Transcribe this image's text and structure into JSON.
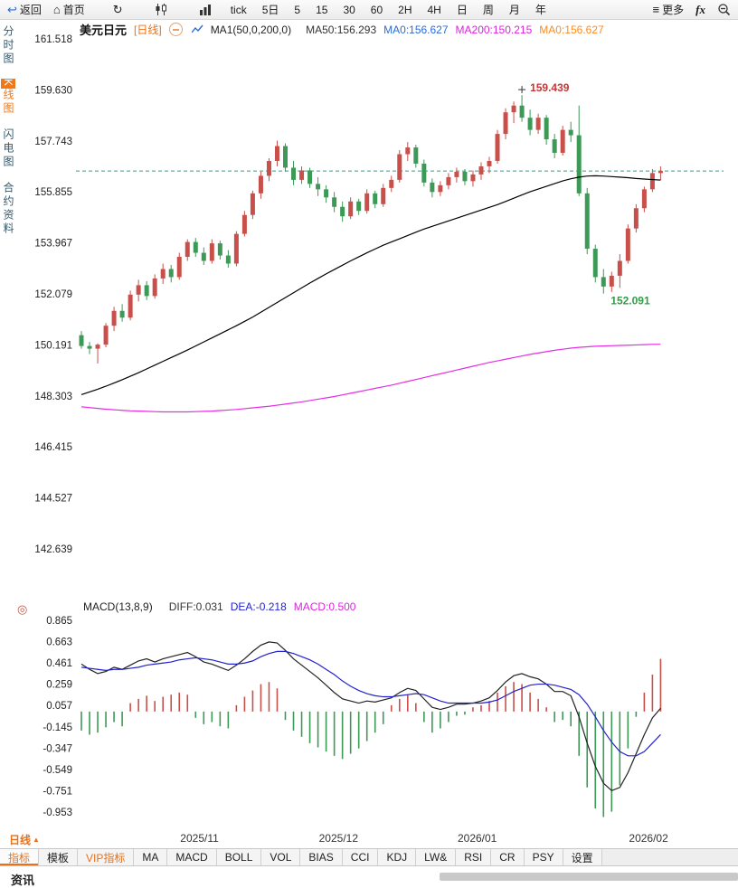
{
  "icons": {
    "back": "↩",
    "home": "⌂",
    "refresh": "↻",
    "more": "≡",
    "indicator_settings": "◎",
    "period_up": "▲"
  },
  "toolbar": {
    "back_label": "返回",
    "home_label": "首页",
    "periods": [
      "tick",
      "5日",
      "5",
      "15",
      "30",
      "60",
      "2H",
      "4H",
      "日",
      "周",
      "月",
      "年"
    ],
    "more_label": "更多",
    "fx_label": "fx"
  },
  "sidebar": {
    "items": [
      {
        "key": "time-share",
        "label": "分时图",
        "active": false
      },
      {
        "key": "kline",
        "label": "K线图",
        "active": true
      },
      {
        "key": "lightning",
        "label": "闪电图",
        "active": false
      },
      {
        "key": "contract-info",
        "label": "合约资料",
        "active": false
      }
    ]
  },
  "chart_header": {
    "symbol": "美元日元",
    "period_tag": "[日线]",
    "ma_title": "MA1(50,0,200,0)",
    "ma_values": [
      {
        "label": "MA50:156.293",
        "color": "#333333"
      },
      {
        "label": "MA0:156.627",
        "color": "#2b6bd7"
      },
      {
        "label": "MA200:150.215",
        "color": "#dd22dd"
      },
      {
        "label": "MA0:156.627",
        "color": "#ff8a1e"
      }
    ]
  },
  "macd_header": {
    "title": "MACD(13,8,9)",
    "values": [
      {
        "label": "DIFF:0.031",
        "color": "#333333"
      },
      {
        "label": "DEA:-0.218",
        "color": "#2222cc"
      },
      {
        "label": "MACD:0.500",
        "color": "#dd22dd"
      }
    ]
  },
  "footer": {
    "period_selector": "日线",
    "news_label": "资讯",
    "tabs": [
      {
        "key": "indicators",
        "label": "指标",
        "style": "active"
      },
      {
        "key": "templates",
        "label": "模板",
        "style": ""
      },
      {
        "key": "vip-indicators",
        "label": "VIP指标",
        "style": "vip"
      },
      {
        "key": "ma",
        "label": "MA",
        "style": ""
      },
      {
        "key": "macd",
        "label": "MACD",
        "style": ""
      },
      {
        "key": "boll",
        "label": "BOLL",
        "style": ""
      },
      {
        "key": "vol",
        "label": "VOL",
        "style": ""
      },
      {
        "key": "bias",
        "label": "BIAS",
        "style": ""
      },
      {
        "key": "cci",
        "label": "CCI",
        "style": ""
      },
      {
        "key": "kdj",
        "label": "KDJ",
        "style": ""
      },
      {
        "key": "lw",
        "label": "LW&",
        "style": ""
      },
      {
        "key": "rsi",
        "label": "RSI",
        "style": ""
      },
      {
        "key": "cr",
        "label": "CR",
        "style": ""
      },
      {
        "key": "psy",
        "label": "PSY",
        "style": ""
      },
      {
        "key": "settings",
        "label": "设置",
        "style": ""
      }
    ]
  },
  "chart_data": {
    "type": "candlestick+macd",
    "title": "美元日元 日线",
    "x_labels": [
      {
        "text": "2025/11",
        "index": 15
      },
      {
        "text": "2025/12",
        "index": 32
      },
      {
        "text": "2026/01",
        "index": 49
      },
      {
        "text": "2026/02",
        "index": 70
      }
    ],
    "main": {
      "ylim": [
        142.639,
        161.518
      ],
      "axis_labels": [
        "161.518",
        "159.630",
        "157.743",
        "155.855",
        "153.967",
        "152.079",
        "150.191",
        "148.303",
        "146.415",
        "144.527",
        "142.639"
      ],
      "last_price_line": 156.627,
      "high_annotation": {
        "text": "159.439",
        "index": 54,
        "price": 159.439,
        "color": "#cc3333"
      },
      "low_annotation": {
        "text": "152.091",
        "index": 64,
        "price": 152.091,
        "color": "#2f9e44"
      },
      "colors": {
        "up": "#c9504a",
        "down": "#3c9a56",
        "ma50": "#000000",
        "ma200": "#e52ee5",
        "last_price": "#2aa08c"
      },
      "candles": [
        [
          150.55,
          150.7,
          150.05,
          150.15
        ],
        [
          150.15,
          150.3,
          149.85,
          150.05
        ],
        [
          150.05,
          150.25,
          149.5,
          150.2
        ],
        [
          150.2,
          151.0,
          150.1,
          150.9
        ],
        [
          150.9,
          151.6,
          150.7,
          151.45
        ],
        [
          151.45,
          151.7,
          151.05,
          151.2
        ],
        [
          151.2,
          152.2,
          151.1,
          152.05
        ],
        [
          152.05,
          152.6,
          151.8,
          152.4
        ],
        [
          152.4,
          152.55,
          151.85,
          152.0
        ],
        [
          152.0,
          152.8,
          151.9,
          152.65
        ],
        [
          152.65,
          153.2,
          152.45,
          153.0
        ],
        [
          153.0,
          153.15,
          152.5,
          152.7
        ],
        [
          152.7,
          153.6,
          152.6,
          153.45
        ],
        [
          153.45,
          154.1,
          153.3,
          154.0
        ],
        [
          154.0,
          154.15,
          153.45,
          153.6
        ],
        [
          153.6,
          153.8,
          153.15,
          153.3
        ],
        [
          153.3,
          154.1,
          153.2,
          153.95
        ],
        [
          153.95,
          154.05,
          153.35,
          153.5
        ],
        [
          153.5,
          153.7,
          153.05,
          153.2
        ],
        [
          153.2,
          154.4,
          153.1,
          154.3
        ],
        [
          154.3,
          155.15,
          154.2,
          155.0
        ],
        [
          155.0,
          155.9,
          154.85,
          155.8
        ],
        [
          155.8,
          156.6,
          155.6,
          156.45
        ],
        [
          156.45,
          157.1,
          156.25,
          157.0
        ],
        [
          157.0,
          157.75,
          156.8,
          157.55
        ],
        [
          157.55,
          157.65,
          156.6,
          156.75
        ],
        [
          156.75,
          157.0,
          156.1,
          156.3
        ],
        [
          156.3,
          156.8,
          156.15,
          156.65
        ],
        [
          156.65,
          156.75,
          156.0,
          156.15
        ],
        [
          156.15,
          156.4,
          155.7,
          155.95
        ],
        [
          155.95,
          156.1,
          155.45,
          155.65
        ],
        [
          155.65,
          155.85,
          155.1,
          155.3
        ],
        [
          155.3,
          155.5,
          154.75,
          154.95
        ],
        [
          154.95,
          155.65,
          154.85,
          155.5
        ],
        [
          155.5,
          155.6,
          155.0,
          155.15
        ],
        [
          155.15,
          155.95,
          155.05,
          155.8
        ],
        [
          155.8,
          155.9,
          155.25,
          155.4
        ],
        [
          155.4,
          156.15,
          155.3,
          156.0
        ],
        [
          156.0,
          156.45,
          155.85,
          156.3
        ],
        [
          156.3,
          157.4,
          156.2,
          157.25
        ],
        [
          157.25,
          157.7,
          157.0,
          157.5
        ],
        [
          157.5,
          157.6,
          156.75,
          156.9
        ],
        [
          156.9,
          157.05,
          156.05,
          156.2
        ],
        [
          156.2,
          156.35,
          155.65,
          155.85
        ],
        [
          155.85,
          156.25,
          155.7,
          156.1
        ],
        [
          156.1,
          156.55,
          155.95,
          156.4
        ],
        [
          156.4,
          156.75,
          156.2,
          156.6
        ],
        [
          156.6,
          156.7,
          156.1,
          156.25
        ],
        [
          156.25,
          156.65,
          156.05,
          156.5
        ],
        [
          156.5,
          156.95,
          156.3,
          156.8
        ],
        [
          156.8,
          157.15,
          156.55,
          157.0
        ],
        [
          157.0,
          158.15,
          156.9,
          158.0
        ],
        [
          158.0,
          158.95,
          157.8,
          158.8
        ],
        [
          158.8,
          159.2,
          158.4,
          159.05
        ],
        [
          159.05,
          159.439,
          158.45,
          158.6
        ],
        [
          158.6,
          158.9,
          157.95,
          158.15
        ],
        [
          158.15,
          158.75,
          158.0,
          158.6
        ],
        [
          158.6,
          158.7,
          157.6,
          157.8
        ],
        [
          157.8,
          158.0,
          157.1,
          157.3
        ],
        [
          157.3,
          158.3,
          157.2,
          158.15
        ],
        [
          158.15,
          158.45,
          157.7,
          157.95
        ],
        [
          157.95,
          159.05,
          155.7,
          155.8
        ],
        [
          155.8,
          156.0,
          153.55,
          153.75
        ],
        [
          153.75,
          153.9,
          152.5,
          152.7
        ],
        [
          152.7,
          153.0,
          152.091,
          152.35
        ],
        [
          152.35,
          152.9,
          152.15,
          152.75
        ],
        [
          152.75,
          153.55,
          152.3,
          153.3
        ],
        [
          153.3,
          154.65,
          153.2,
          154.5
        ],
        [
          154.5,
          155.4,
          154.35,
          155.25
        ],
        [
          155.25,
          156.05,
          155.1,
          155.95
        ],
        [
          155.95,
          156.7,
          155.85,
          156.55
        ],
        [
          156.55,
          156.8,
          156.3,
          156.63
        ]
      ],
      "ma50": [
        148.35,
        148.45,
        148.55,
        148.66,
        148.78,
        148.9,
        149.03,
        149.16,
        149.3,
        149.44,
        149.58,
        149.72,
        149.86,
        150.0,
        150.15,
        150.3,
        150.45,
        150.6,
        150.75,
        150.9,
        151.06,
        151.22,
        151.4,
        151.58,
        151.76,
        151.94,
        152.12,
        152.3,
        152.48,
        152.65,
        152.82,
        152.98,
        153.14,
        153.3,
        153.45,
        153.6,
        153.74,
        153.88,
        154.0,
        154.12,
        154.24,
        154.36,
        154.48,
        154.58,
        154.68,
        154.78,
        154.88,
        154.98,
        155.08,
        155.18,
        155.28,
        155.38,
        155.5,
        155.62,
        155.74,
        155.86,
        155.96,
        156.06,
        156.16,
        156.26,
        156.34,
        156.4,
        156.44,
        156.45,
        156.44,
        156.42,
        156.4,
        156.38,
        156.35,
        156.33,
        156.31,
        156.293
      ],
      "ma200": [
        147.9,
        147.87,
        147.84,
        147.81,
        147.79,
        147.77,
        147.75,
        147.74,
        147.73,
        147.72,
        147.71,
        147.71,
        147.71,
        147.71,
        147.72,
        147.73,
        147.74,
        147.76,
        147.78,
        147.8,
        147.83,
        147.86,
        147.89,
        147.92,
        147.96,
        148.0,
        148.04,
        148.08,
        148.13,
        148.18,
        148.23,
        148.28,
        148.34,
        148.4,
        148.46,
        148.52,
        148.58,
        148.64,
        148.7,
        148.77,
        148.84,
        148.91,
        148.98,
        149.05,
        149.12,
        149.19,
        149.26,
        149.33,
        149.4,
        149.47,
        149.54,
        149.6,
        149.66,
        149.72,
        149.78,
        149.84,
        149.89,
        149.94,
        149.99,
        150.03,
        150.07,
        150.1,
        150.12,
        150.14,
        150.15,
        150.16,
        150.17,
        150.18,
        150.19,
        150.2,
        150.21,
        150.215
      ]
    },
    "macd": {
      "ylim": [
        -0.953,
        0.865
      ],
      "axis_labels": [
        "0.865",
        "0.663",
        "0.461",
        "0.259",
        "0.057",
        "-0.145",
        "-0.347",
        "-0.549",
        "-0.751",
        "-0.953"
      ],
      "colors": {
        "diff": "#222222",
        "dea": "#2222cc",
        "hist_up": "#c9504a",
        "hist_down": "#3c9a56"
      },
      "diff": [
        0.45,
        0.4,
        0.36,
        0.38,
        0.42,
        0.4,
        0.44,
        0.48,
        0.5,
        0.47,
        0.5,
        0.52,
        0.54,
        0.56,
        0.52,
        0.47,
        0.45,
        0.42,
        0.39,
        0.44,
        0.5,
        0.57,
        0.63,
        0.66,
        0.65,
        0.58,
        0.5,
        0.44,
        0.38,
        0.32,
        0.25,
        0.18,
        0.12,
        0.1,
        0.08,
        0.1,
        0.09,
        0.11,
        0.13,
        0.18,
        0.22,
        0.2,
        0.12,
        0.04,
        0.02,
        0.04,
        0.07,
        0.07,
        0.08,
        0.1,
        0.13,
        0.2,
        0.28,
        0.34,
        0.36,
        0.33,
        0.31,
        0.26,
        0.19,
        0.19,
        0.15,
        -0.05,
        -0.3,
        -0.52,
        -0.68,
        -0.75,
        -0.72,
        -0.58,
        -0.4,
        -0.22,
        -0.06,
        0.031
      ],
      "dea": [
        0.42,
        0.41,
        0.4,
        0.39,
        0.4,
        0.4,
        0.41,
        0.42,
        0.44,
        0.45,
        0.46,
        0.47,
        0.49,
        0.5,
        0.51,
        0.5,
        0.49,
        0.47,
        0.45,
        0.45,
        0.46,
        0.48,
        0.52,
        0.55,
        0.57,
        0.57,
        0.55,
        0.52,
        0.49,
        0.45,
        0.4,
        0.35,
        0.29,
        0.24,
        0.2,
        0.17,
        0.15,
        0.14,
        0.14,
        0.15,
        0.16,
        0.17,
        0.16,
        0.13,
        0.1,
        0.08,
        0.08,
        0.08,
        0.08,
        0.08,
        0.09,
        0.11,
        0.15,
        0.19,
        0.22,
        0.25,
        0.26,
        0.26,
        0.25,
        0.23,
        0.21,
        0.16,
        0.07,
        -0.05,
        -0.18,
        -0.29,
        -0.38,
        -0.42,
        -0.42,
        -0.38,
        -0.3,
        -0.218
      ],
      "hist": [
        -0.18,
        -0.22,
        -0.2,
        -0.15,
        -0.1,
        -0.14,
        0.08,
        0.12,
        0.15,
        0.1,
        0.14,
        0.16,
        0.18,
        0.16,
        -0.06,
        -0.12,
        -0.1,
        -0.14,
        -0.16,
        0.06,
        0.14,
        0.2,
        0.26,
        0.28,
        0.22,
        -0.08,
        -0.18,
        -0.24,
        -0.3,
        -0.34,
        -0.38,
        -0.42,
        -0.45,
        -0.4,
        -0.35,
        -0.28,
        -0.2,
        -0.12,
        0.06,
        0.12,
        0.16,
        0.08,
        -0.1,
        -0.2,
        -0.16,
        -0.1,
        -0.04,
        -0.03,
        0.04,
        0.06,
        0.1,
        0.18,
        0.24,
        0.28,
        0.26,
        0.18,
        0.12,
        0.04,
        -0.1,
        -0.08,
        -0.14,
        -0.42,
        -0.72,
        -0.92,
        -1.0,
        -0.95,
        -0.7,
        -0.35,
        -0.05,
        0.18,
        0.35,
        0.5
      ]
    }
  }
}
